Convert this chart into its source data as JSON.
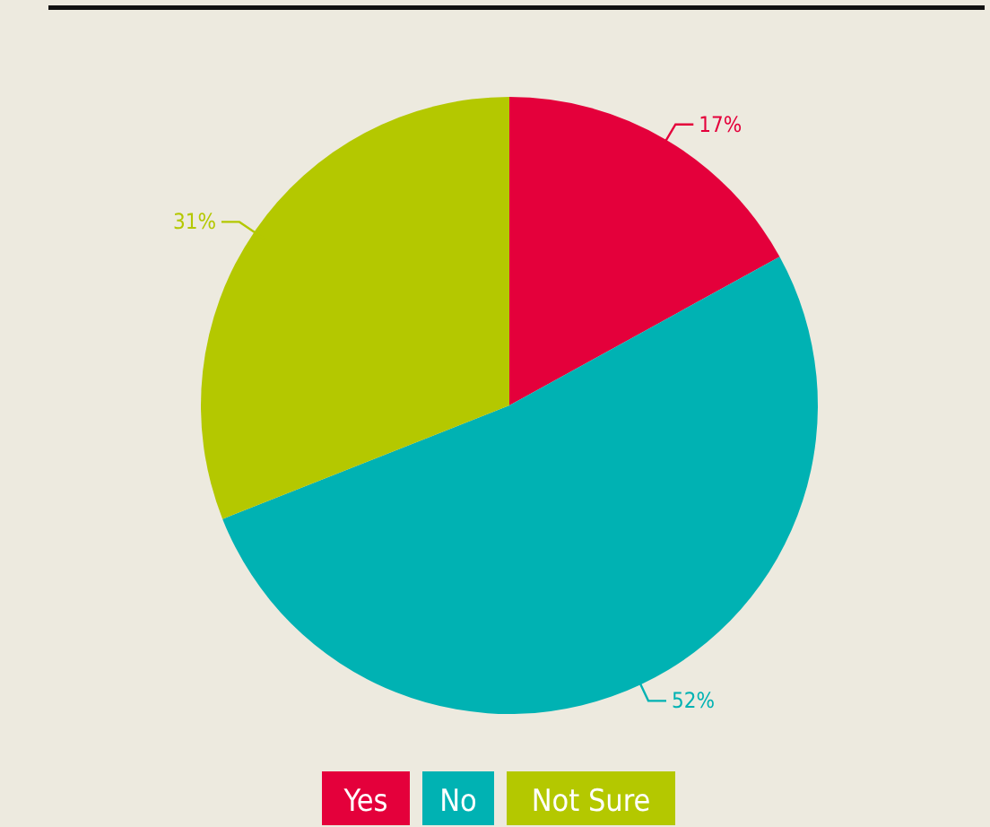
{
  "chart_data": {
    "type": "pie",
    "categories": [
      "Yes",
      "No",
      "Not Sure"
    ],
    "values": [
      17,
      52,
      31
    ],
    "colors": [
      "#e4003b",
      "#00b2b3",
      "#b4c800"
    ],
    "value_labels": [
      "17%",
      "52%",
      "31%"
    ],
    "legend": "bottom"
  }
}
